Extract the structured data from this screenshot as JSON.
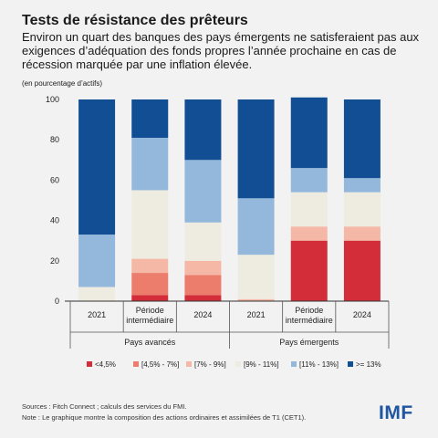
{
  "header": {
    "title": "Tests de résistance des prêteurs",
    "subtitle": "Environ un quart des banques des pays émergents ne satisferaient pas aux exigences d’adéquation des fonds propres l’année prochaine en cas de récession marquée par une inflation élevée.",
    "unit": "(en pourcentage d’actifs)"
  },
  "footer": {
    "source": "Sources : Fitch Connect ; calculs des services du FMI.",
    "note": "Note : Le graphique montre la composition des actions ordinaires et assimilées de T1 (CET1).",
    "logo": "IMF"
  },
  "chart_data": {
    "type": "bar",
    "stacked": true,
    "categories": [
      "2021",
      "Période intermédiaire",
      "2024",
      "2021",
      "Période intermédiaire",
      "2024"
    ],
    "groups": [
      {
        "label": "Pays avancés",
        "categories": [
          0,
          1,
          2
        ]
      },
      {
        "label": "Pays émergents",
        "categories": [
          3,
          4,
          5
        ]
      }
    ],
    "series": [
      {
        "name": "<4,5%",
        "color": "#d42d3a",
        "values": [
          0,
          3,
          3,
          0,
          30,
          30
        ]
      },
      {
        "name": "[4,5% - 7%]",
        "color": "#ec7d6c",
        "values": [
          0,
          11,
          10,
          0,
          0,
          0
        ]
      },
      {
        "name": "[7% - 9%]",
        "color": "#f5b7a6",
        "values": [
          0,
          7,
          7,
          1,
          7,
          7
        ]
      },
      {
        "name": "[9% - 11%]",
        "color": "#eeebe0",
        "values": [
          7,
          34,
          19,
          22,
          17,
          17
        ]
      },
      {
        "name": "[11% - 13%]",
        "color": "#94b8dc",
        "values": [
          26,
          26,
          31,
          28,
          12,
          7
        ]
      },
      {
        "name": ">= 13%",
        "color": "#124e94",
        "values": [
          67,
          19,
          30,
          49,
          35,
          39
        ]
      }
    ],
    "yticks": [
      0,
      20,
      40,
      60,
      80,
      100
    ],
    "ylim": [
      0,
      100
    ],
    "grid": false,
    "legend_position": "bottom"
  }
}
